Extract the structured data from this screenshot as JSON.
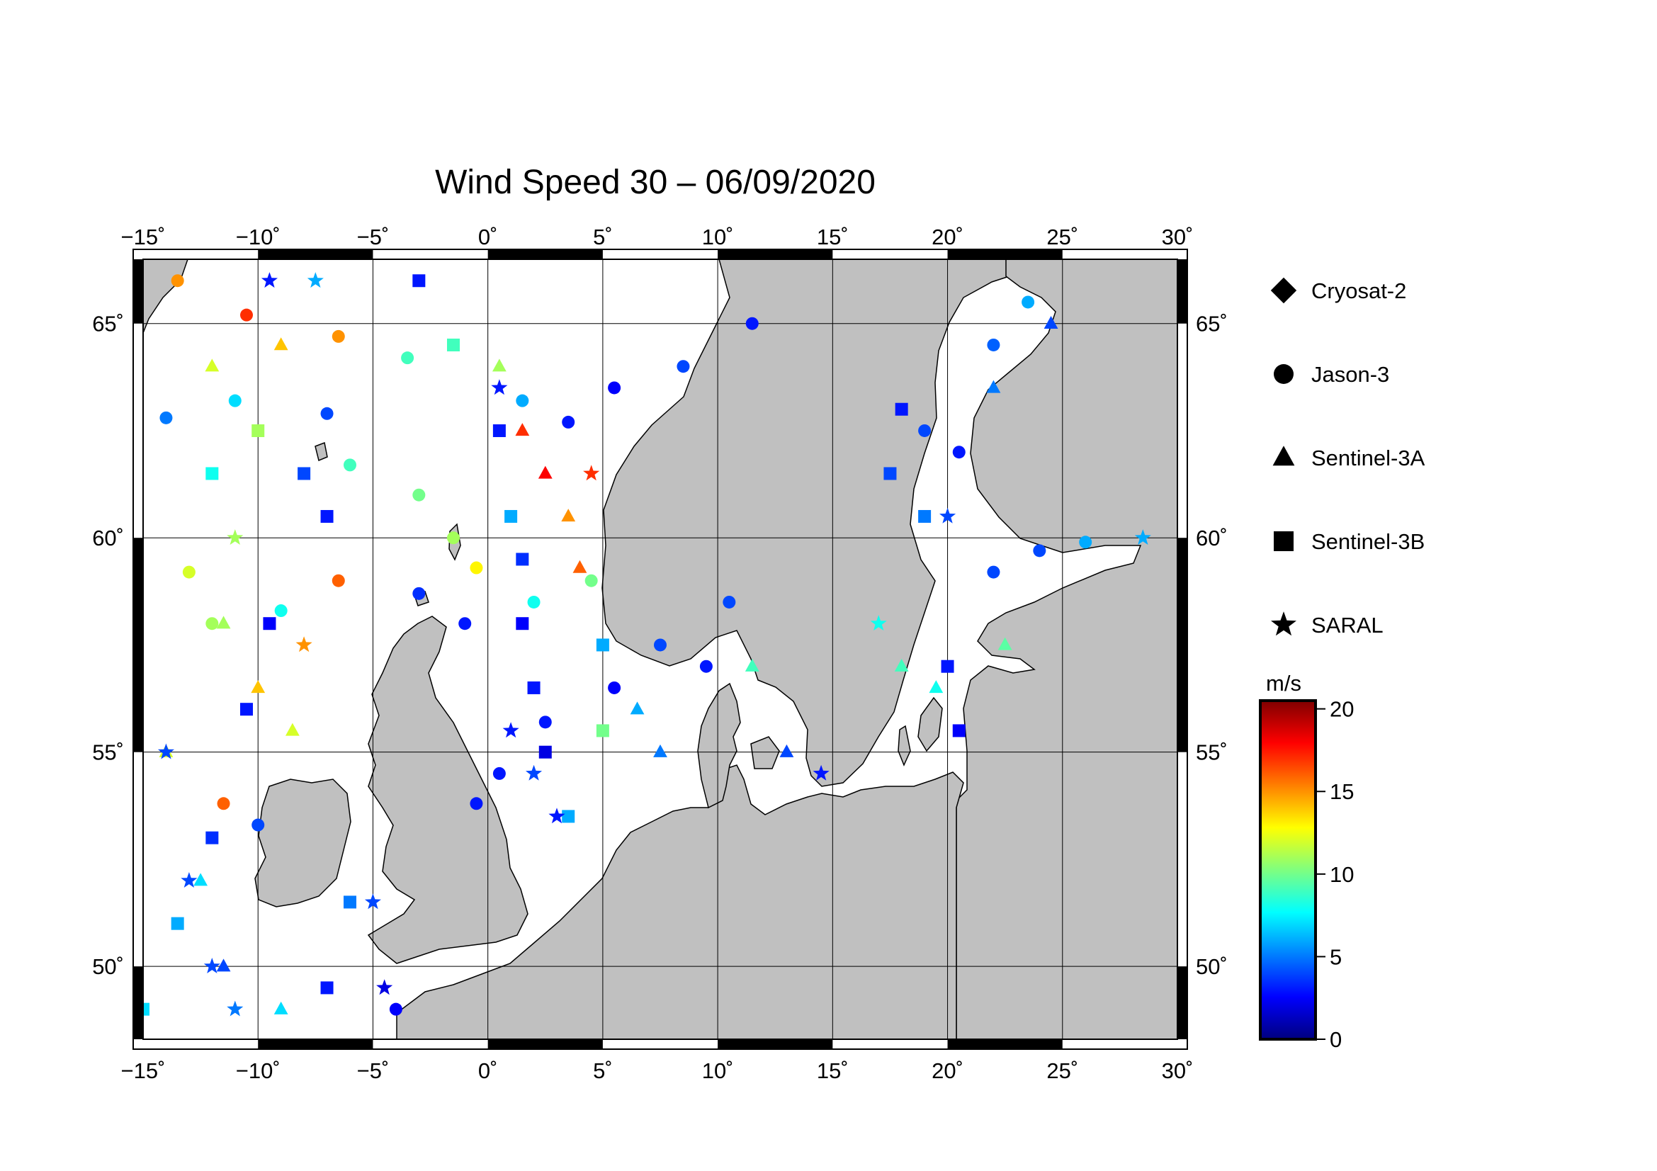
{
  "title": "Wind Speed 30 – 06/09/2020",
  "lon_ticks": [
    "−15˚",
    "−10˚",
    "−5˚",
    "0˚",
    "5˚",
    "10˚",
    "15˚",
    "20˚",
    "25˚",
    "30˚"
  ],
  "lat_ticks": [
    "65˚",
    "60˚",
    "55˚",
    "50˚"
  ],
  "lon_values": [
    -15,
    -10,
    -5,
    0,
    5,
    10,
    15,
    20,
    25,
    30
  ],
  "lat_values": [
    65,
    60,
    55,
    50
  ],
  "extent": {
    "lon_min": -15,
    "lon_max": 30,
    "lat_min": 48.3,
    "lat_max": 66.5
  },
  "legend": [
    {
      "label": "Cryosat-2",
      "icon": "diamond-icon"
    },
    {
      "label": "Jason-3",
      "icon": "circle-icon"
    },
    {
      "label": "Sentinel-3A",
      "icon": "triangle-icon"
    },
    {
      "label": "Sentinel-3B",
      "icon": "square-icon"
    },
    {
      "label": "SARAL",
      "icon": "star-icon"
    }
  ],
  "colorbar": {
    "unit": "m/s",
    "min": 0,
    "max": 20.5,
    "tick_values": [
      0,
      5,
      10,
      15,
      20
    ],
    "tick_labels": [
      "0",
      "5",
      "10",
      "15",
      "20"
    ],
    "colors": [
      "#00007f",
      "#0000ff",
      "#007fff",
      "#00ffff",
      "#7fff7f",
      "#ffff00",
      "#ff7f00",
      "#ff0000",
      "#7f0000"
    ]
  },
  "colors": {
    "land": "#c0c0c0",
    "sea": "#ffffff",
    "frame": "#000000"
  },
  "chart_data": {
    "type": "scatter",
    "title": "Wind Speed 30 – 06/09/2020",
    "value_unit": "m/s",
    "series": [
      {
        "name": "Jason-3",
        "marker": "circle",
        "points": [
          [
            -13.5,
            66.0,
            15.0
          ],
          [
            -10.5,
            65.2,
            17.0
          ],
          [
            -6.5,
            64.7,
            15.0
          ],
          [
            -3.5,
            64.2,
            9.0
          ],
          [
            1.5,
            63.2,
            6.0
          ],
          [
            3.5,
            62.7,
            3.0
          ],
          [
            5.5,
            63.5,
            2.5
          ],
          [
            8.5,
            64.0,
            4.0
          ],
          [
            11.5,
            65.0,
            3.0
          ],
          [
            -14.0,
            62.8,
            5.0
          ],
          [
            -11.0,
            63.2,
            7.0
          ],
          [
            -7.0,
            62.9,
            4.0
          ],
          [
            -6.0,
            61.7,
            9.0
          ],
          [
            -3.0,
            61.0,
            10.0
          ],
          [
            -1.5,
            60.0,
            11.0
          ],
          [
            -0.5,
            59.3,
            13.0
          ],
          [
            -3.0,
            58.7,
            3.5
          ],
          [
            -1.0,
            58.0,
            3.0
          ],
          [
            2.0,
            58.5,
            8.0
          ],
          [
            4.5,
            59.0,
            10.0
          ],
          [
            7.5,
            57.5,
            4.0
          ],
          [
            9.5,
            57.0,
            3.0
          ],
          [
            10.5,
            58.5,
            4.0
          ],
          [
            5.5,
            56.5,
            2.5
          ],
          [
            2.5,
            55.7,
            3.0
          ],
          [
            0.5,
            54.5,
            3.0
          ],
          [
            -0.5,
            53.8,
            3.0
          ],
          [
            -13.0,
            59.2,
            12.0
          ],
          [
            -12.0,
            58.0,
            11.0
          ],
          [
            -9.0,
            58.3,
            8.0
          ],
          [
            -6.5,
            59.0,
            16.0
          ],
          [
            -11.5,
            53.8,
            16.0
          ],
          [
            -10.0,
            53.3,
            4.0
          ],
          [
            22.0,
            64.5,
            4.5
          ],
          [
            23.5,
            65.5,
            6.0
          ],
          [
            19.0,
            62.5,
            4.0
          ],
          [
            20.5,
            62.0,
            3.0
          ],
          [
            24.0,
            59.7,
            4.0
          ],
          [
            26.0,
            59.9,
            6.0
          ],
          [
            22.0,
            59.2,
            4.0
          ],
          [
            -4.0,
            49.0,
            2.5
          ]
        ]
      },
      {
        "name": "Sentinel-3A",
        "marker": "triangle",
        "points": [
          [
            -12.0,
            64.0,
            12.0
          ],
          [
            -9.0,
            64.5,
            14.0
          ],
          [
            0.5,
            64.0,
            11.0
          ],
          [
            1.5,
            62.5,
            17.0
          ],
          [
            2.5,
            61.5,
            18.0
          ],
          [
            3.5,
            60.5,
            15.0
          ],
          [
            4.0,
            59.3,
            16.0
          ],
          [
            -11.5,
            58.0,
            11.0
          ],
          [
            -10.0,
            56.5,
            14.0
          ],
          [
            -8.5,
            55.5,
            12.0
          ],
          [
            -14.0,
            55.0,
            12.0
          ],
          [
            -12.5,
            52.0,
            7.0
          ],
          [
            -11.5,
            50.0,
            4.0
          ],
          [
            -9.0,
            49.0,
            7.0
          ],
          [
            6.5,
            56.0,
            6.0
          ],
          [
            7.5,
            55.0,
            5.0
          ],
          [
            11.5,
            57.0,
            9.0
          ],
          [
            13.0,
            55.0,
            4.0
          ],
          [
            18.0,
            57.0,
            9.0
          ],
          [
            19.5,
            56.5,
            8.0
          ],
          [
            22.5,
            57.5,
            9.5
          ],
          [
            24.5,
            65.0,
            4.0
          ],
          [
            22.0,
            63.5,
            5.0
          ]
        ]
      },
      {
        "name": "Sentinel-3B",
        "marker": "square",
        "points": [
          [
            -3.0,
            66.0,
            3.0
          ],
          [
            -1.5,
            64.5,
            9.0
          ],
          [
            0.5,
            62.5,
            3.0
          ],
          [
            1.0,
            60.5,
            6.0
          ],
          [
            1.5,
            59.5,
            3.5
          ],
          [
            1.5,
            58.0,
            2.5
          ],
          [
            2.0,
            56.5,
            3.0
          ],
          [
            2.5,
            55.0,
            2.0
          ],
          [
            3.5,
            53.5,
            6.0
          ],
          [
            5.0,
            57.5,
            6.0
          ],
          [
            5.0,
            55.5,
            10.0
          ],
          [
            -8.0,
            61.5,
            4.0
          ],
          [
            -7.0,
            60.5,
            3.0
          ],
          [
            -9.5,
            58.0,
            2.5
          ],
          [
            -10.5,
            56.0,
            3.0
          ],
          [
            -12.0,
            53.0,
            3.5
          ],
          [
            -13.5,
            51.0,
            6.0
          ],
          [
            -15.0,
            49.0,
            7.0
          ],
          [
            -6.0,
            51.5,
            5.0
          ],
          [
            -7.0,
            49.5,
            3.0
          ],
          [
            18.0,
            63.0,
            3.0
          ],
          [
            17.5,
            61.5,
            4.0
          ],
          [
            19.0,
            60.5,
            5.0
          ],
          [
            20.0,
            57.0,
            3.0
          ],
          [
            20.5,
            55.5,
            2.5
          ],
          [
            -12.0,
            61.5,
            8.0
          ],
          [
            -10.0,
            62.5,
            11.0
          ]
        ]
      },
      {
        "name": "SARAL",
        "marker": "star",
        "points": [
          [
            -9.5,
            66.0,
            3.0
          ],
          [
            -7.5,
            66.0,
            6.0
          ],
          [
            0.5,
            63.5,
            3.0
          ],
          [
            4.5,
            61.5,
            17.0
          ],
          [
            -11.0,
            60.0,
            11.0
          ],
          [
            -8.0,
            57.5,
            15.0
          ],
          [
            1.0,
            55.5,
            3.0
          ],
          [
            2.0,
            54.5,
            4.0
          ],
          [
            3.0,
            53.5,
            3.0
          ],
          [
            -14.0,
            55.0,
            4.0
          ],
          [
            -13.0,
            52.0,
            4.0
          ],
          [
            -12.0,
            50.0,
            4.0
          ],
          [
            -11.0,
            49.0,
            5.0
          ],
          [
            -5.0,
            51.5,
            4.0
          ],
          [
            -4.5,
            49.5,
            2.0
          ],
          [
            14.5,
            54.5,
            3.0
          ],
          [
            17.0,
            58.0,
            8.0
          ],
          [
            20.0,
            60.5,
            4.0
          ],
          [
            28.5,
            60.0,
            6.0
          ]
        ]
      }
    ]
  }
}
